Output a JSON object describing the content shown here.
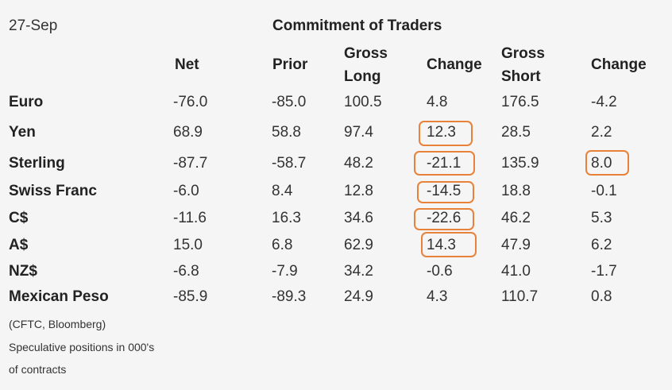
{
  "date": "27-Sep",
  "title": "Commitment of Traders",
  "headers": {
    "net": "Net",
    "prior": "Prior",
    "gross_long_1": "Gross",
    "gross_long_2": "Long",
    "change_long": "Change",
    "gross_short_1": "Gross",
    "gross_short_2": "Short",
    "change_short": "Change"
  },
  "rows": [
    {
      "label": "Euro",
      "net": "-76.0",
      "prior": "-85.0",
      "gross_long": "100.5",
      "change_long": "4.8",
      "gross_short": "176.5",
      "change_short": "-4.2"
    },
    {
      "label": "Yen",
      "net": "68.9",
      "prior": "58.8",
      "gross_long": "97.4",
      "change_long": "12.3",
      "gross_short": "28.5",
      "change_short": "2.2"
    },
    {
      "label": "Sterling",
      "net": "-87.7",
      "prior": "-58.7",
      "gross_long": "48.2",
      "change_long": "-21.1",
      "gross_short": "135.9",
      "change_short": "8.0"
    },
    {
      "label": "Swiss Franc",
      "net": "-6.0",
      "prior": "8.4",
      "gross_long": "12.8",
      "change_long": "-14.5",
      "gross_short": "18.8",
      "change_short": "-0.1"
    },
    {
      "label": "C$",
      "net": "-11.6",
      "prior": "16.3",
      "gross_long": "34.6",
      "change_long": "-22.6",
      "gross_short": "46.2",
      "change_short": "5.3"
    },
    {
      "label": "A$",
      "net": "15.0",
      "prior": "6.8",
      "gross_long": "62.9",
      "change_long": "14.3",
      "gross_short": "47.9",
      "change_short": "6.2"
    },
    {
      "label": "NZ$",
      "net": "-6.8",
      "prior": "-7.9",
      "gross_long": "34.2",
      "change_long": "-0.6",
      "gross_short": "41.0",
      "change_short": "-1.7"
    },
    {
      "label": "Mexican Peso",
      "net": "-85.9",
      "prior": "-89.3",
      "gross_long": "24.9",
      "change_long": "4.3",
      "gross_short": "110.7",
      "change_short": "0.8"
    }
  ],
  "notes": {
    "source": "(CFTC, Bloomberg)",
    "line1": "Speculative positions in 000's",
    "line2": "of contracts"
  },
  "highlight_color": "#e8823a"
}
